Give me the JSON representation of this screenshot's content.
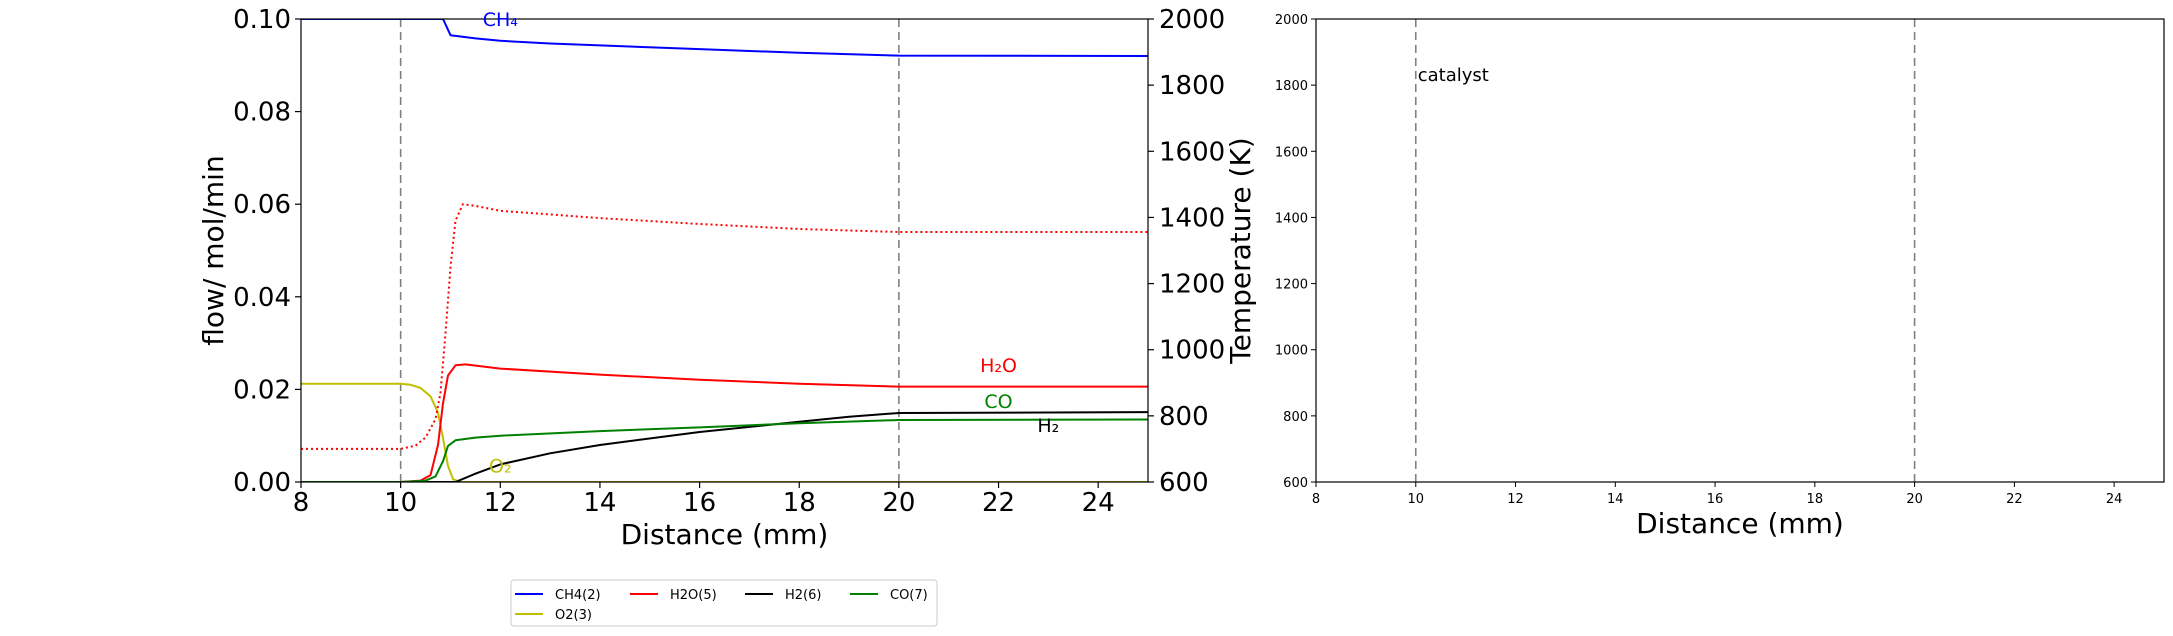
{
  "colors": {
    "CH4": "#0000ff",
    "H2O": "#ff0000",
    "H2": "#000000",
    "CO": "#008000",
    "O2": "#bfbf00",
    "marker": "#808080"
  },
  "chart_data": [
    {
      "type": "line",
      "xlabel": "Distance (mm)",
      "ylabel": "flow/ mol/min",
      "y2label": "Temperature (K)",
      "xlim": [
        8,
        25
      ],
      "ylim": [
        0,
        0.1
      ],
      "y2lim": [
        600,
        2000
      ],
      "xticks": [
        "8",
        "10",
        "12",
        "14",
        "16",
        "18",
        "20",
        "22",
        "24"
      ],
      "yticks": [
        "0.00",
        "0.02",
        "0.04",
        "0.06",
        "0.08",
        "0.10"
      ],
      "y2ticks": [
        "600",
        "800",
        "1000",
        "1200",
        "1400",
        "1600",
        "1800",
        "2000"
      ],
      "vlines": [
        10,
        20
      ],
      "grid": false,
      "series": [
        {
          "name": "CH4(2)",
          "color_key": "CH4",
          "dash": "solid",
          "points": [
            [
              8,
              0.1
            ],
            [
              10,
              0.1
            ],
            [
              10.85,
              0.1
            ],
            [
              11,
              0.0965
            ],
            [
              11.5,
              0.0958
            ],
            [
              12,
              0.0953
            ],
            [
              13,
              0.0947
            ],
            [
              14,
              0.0943
            ],
            [
              16,
              0.0935
            ],
            [
              18,
              0.0927
            ],
            [
              20,
              0.0921
            ],
            [
              25,
              0.092
            ]
          ]
        },
        {
          "name": "O2(3)",
          "color_key": "O2",
          "dash": "solid",
          "points": [
            [
              8,
              0.0212
            ],
            [
              10,
              0.0212
            ],
            [
              10.2,
              0.021
            ],
            [
              10.4,
              0.0203
            ],
            [
              10.6,
              0.0185
            ],
            [
              10.75,
              0.015
            ],
            [
              10.85,
              0.0095
            ],
            [
              10.95,
              0.0035
            ],
            [
              11.05,
              0.0006
            ],
            [
              11.2,
              0
            ],
            [
              25,
              0
            ]
          ]
        },
        {
          "name": "H2O(5)",
          "color_key": "H2O",
          "dash": "solid",
          "points": [
            [
              8,
              0
            ],
            [
              10,
              0
            ],
            [
              10.4,
              0.0003
            ],
            [
              10.6,
              0.0015
            ],
            [
              10.75,
              0.008
            ],
            [
              10.85,
              0.017
            ],
            [
              10.95,
              0.023
            ],
            [
              11.1,
              0.0252
            ],
            [
              11.3,
              0.0254
            ],
            [
              12,
              0.0245
            ],
            [
              14,
              0.0232
            ],
            [
              16,
              0.0221
            ],
            [
              18,
              0.0212
            ],
            [
              20,
              0.0206
            ],
            [
              25,
              0.0206
            ]
          ]
        },
        {
          "name": "H2(6)",
          "color_key": "H2",
          "dash": "solid",
          "points": [
            [
              8,
              0
            ],
            [
              10,
              0
            ],
            [
              11.1,
              0
            ],
            [
              11.5,
              0.0018
            ],
            [
              12,
              0.0038
            ],
            [
              13,
              0.0062
            ],
            [
              14,
              0.008
            ],
            [
              16,
              0.0108
            ],
            [
              18,
              0.013
            ],
            [
              19,
              0.0141
            ],
            [
              20,
              0.0149
            ],
            [
              25,
              0.0151
            ]
          ]
        },
        {
          "name": "CO(7)",
          "color_key": "CO",
          "dash": "solid",
          "points": [
            [
              8,
              0
            ],
            [
              10,
              0
            ],
            [
              10.5,
              0.0003
            ],
            [
              10.7,
              0.0012
            ],
            [
              10.85,
              0.0045
            ],
            [
              10.95,
              0.0078
            ],
            [
              11.1,
              0.009
            ],
            [
              11.5,
              0.0096
            ],
            [
              12,
              0.01
            ],
            [
              14,
              0.011
            ],
            [
              16,
              0.0118
            ],
            [
              18,
              0.0127
            ],
            [
              20,
              0.0134
            ],
            [
              25,
              0.0135
            ]
          ]
        },
        {
          "name": "",
          "color_key": "H2O",
          "dash": "dotted",
          "axis": "y2",
          "points": [
            [
              8,
              700
            ],
            [
              10,
              700
            ],
            [
              10.3,
              710
            ],
            [
              10.5,
              735
            ],
            [
              10.7,
              790
            ],
            [
              10.8,
              870
            ],
            [
              10.9,
              1050
            ],
            [
              11,
              1250
            ],
            [
              11.1,
              1390
            ],
            [
              11.25,
              1440
            ],
            [
              11.5,
              1435
            ],
            [
              12,
              1420
            ],
            [
              14,
              1398
            ],
            [
              16,
              1380
            ],
            [
              18,
              1365
            ],
            [
              20,
              1356
            ],
            [
              25,
              1356
            ]
          ]
        }
      ],
      "annotations": [
        {
          "text": "CH₄",
          "x": 12.0,
          "y": 0.0985,
          "color_key": "CH4"
        },
        {
          "text": "H₂O",
          "x": 22.0,
          "y": 0.0238,
          "color_key": "H2O"
        },
        {
          "text": "CO",
          "x": 22.0,
          "y": 0.016,
          "color_key": "CO"
        },
        {
          "text": "H₂",
          "x": 23.0,
          "y": 0.0108,
          "color_key": "H2"
        },
        {
          "text": "O₂",
          "x": 12.0,
          "y": 0.002,
          "color_key": "O2"
        }
      ],
      "legend": {
        "placement": "below",
        "entries": [
          {
            "label": "CH4(2)",
            "color_key": "CH4"
          },
          {
            "label": "H2O(5)",
            "color_key": "H2O"
          },
          {
            "label": "H2(6)",
            "color_key": "H2"
          },
          {
            "label": "CO(7)",
            "color_key": "CO"
          },
          {
            "label": "O2(3)",
            "color_key": "O2"
          }
        ]
      }
    },
    {
      "type": "line",
      "xlabel": "Distance (mm)",
      "ylabel": "",
      "xlim": [
        8,
        25
      ],
      "ylim": [
        600,
        2000
      ],
      "xticks": [
        "8",
        "10",
        "12",
        "14",
        "16",
        "18",
        "20",
        "22",
        "24"
      ],
      "yticks": [
        "600",
        "800",
        "1000",
        "1200",
        "1400",
        "1600",
        "1800",
        "2000"
      ],
      "vlines": [
        10,
        20
      ],
      "grid": false,
      "series": [],
      "annotations": [
        {
          "text": "catalyst",
          "x": 10.0,
          "y": 1830
        }
      ]
    }
  ]
}
